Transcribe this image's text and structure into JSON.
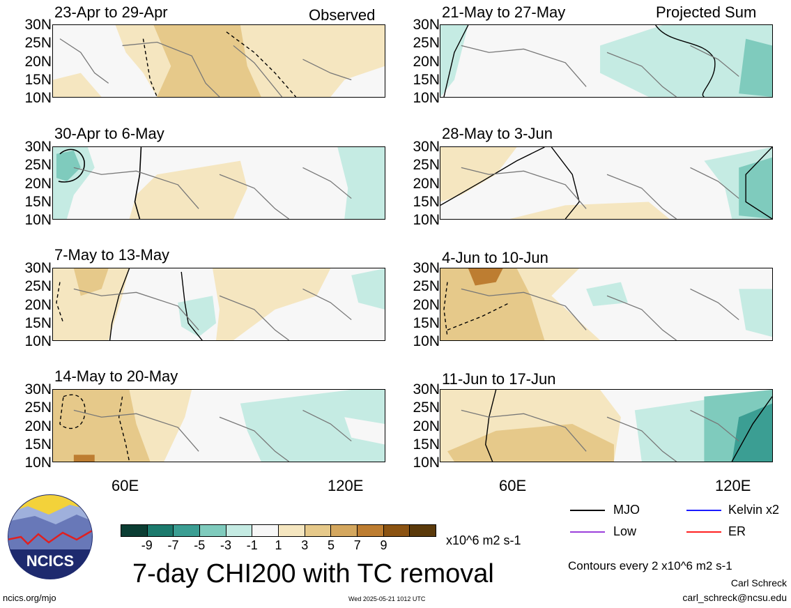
{
  "header": {
    "left_label": "Observed",
    "right_label": "Projected Sum"
  },
  "panels_left": [
    {
      "title": "23-Apr to 29-Apr"
    },
    {
      "title": "30-Apr to 6-May"
    },
    {
      "title": "7-May to 13-May"
    },
    {
      "title": "14-May to 20-May"
    }
  ],
  "panels_right": [
    {
      "title": "21-May to 27-May"
    },
    {
      "title": "28-May to 3-Jun"
    },
    {
      "title": "4-Jun to 10-Jun"
    },
    {
      "title": "11-Jun to 17-Jun"
    }
  ],
  "lat_labels": [
    "30N",
    "25N",
    "20N",
    "15N",
    "10N"
  ],
  "lon_labels": [
    "60E",
    "120E"
  ],
  "colorbar": {
    "colors": [
      "#0b3d33",
      "#1c7a6d",
      "#3b9e93",
      "#7fcbbd",
      "#c5ebe3",
      "#f7f7f7",
      "#f5e6c0",
      "#e6c98a",
      "#d4a75e",
      "#bd7d31",
      "#8b5312",
      "#5b3a0b"
    ],
    "ticks": [
      "-9",
      "-7",
      "-5",
      "-3",
      "-1",
      "1",
      "3",
      "5",
      "7",
      "9"
    ],
    "units": "x10^6 m2 s-1"
  },
  "legend": [
    {
      "label": "MJO",
      "color": "#000000"
    },
    {
      "label": "Kelvin x2",
      "color": "#1a1aff"
    },
    {
      "label": "Low",
      "color": "#9b3fdb"
    },
    {
      "label": "ER",
      "color": "#ff2020"
    }
  ],
  "title": "7-day CHI200 with TC removal",
  "contours_note": "Contours every 2 x10^6 m2 s-1",
  "credit": {
    "name": "Carl Schreck",
    "email": "carl_schreck@ncsu.edu"
  },
  "site": "ncics.org/mjo",
  "timestamp": "Wed 2025-05-21 1012 UTC",
  "logo_text": "NCICS"
}
